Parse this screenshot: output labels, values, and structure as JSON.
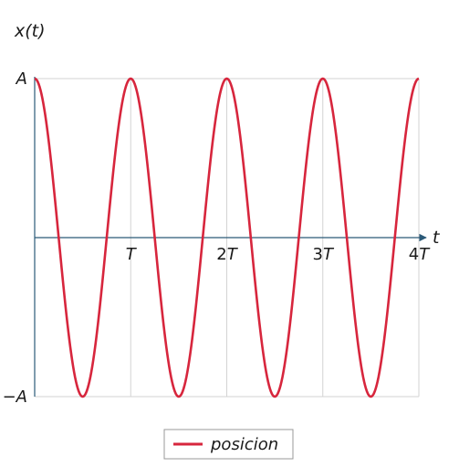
{
  "chart_data": {
    "type": "line",
    "ylabel": "x(t)",
    "xlabel": "t",
    "x_ticks": [
      {
        "value": 1,
        "label": "T"
      },
      {
        "value": 2,
        "label": "2T"
      },
      {
        "value": 3,
        "label": "3T"
      },
      {
        "value": 4,
        "label": "4T"
      }
    ],
    "y_ticks": [
      {
        "value": 1,
        "label": "A"
      },
      {
        "value": -1,
        "label": "−A"
      }
    ],
    "xlim": [
      0,
      4
    ],
    "ylim": [
      -1,
      1
    ],
    "grid": true,
    "legend_position": "bottom-center",
    "series": [
      {
        "name": "posicion",
        "color": "#d7263d",
        "function": "cos(2*pi*t/T)",
        "x": [
          0,
          0.25,
          0.5,
          0.75,
          1,
          1.25,
          1.5,
          1.75,
          2,
          2.25,
          2.5,
          2.75,
          3,
          3.25,
          3.5,
          3.75,
          4
        ],
        "y": [
          1,
          0,
          -1,
          0,
          1,
          0,
          -1,
          0,
          1,
          0,
          -1,
          0,
          1,
          0,
          -1,
          0,
          1
        ]
      }
    ],
    "axis_color": "#2b5a78",
    "grid_color": "#d3d3d3"
  }
}
